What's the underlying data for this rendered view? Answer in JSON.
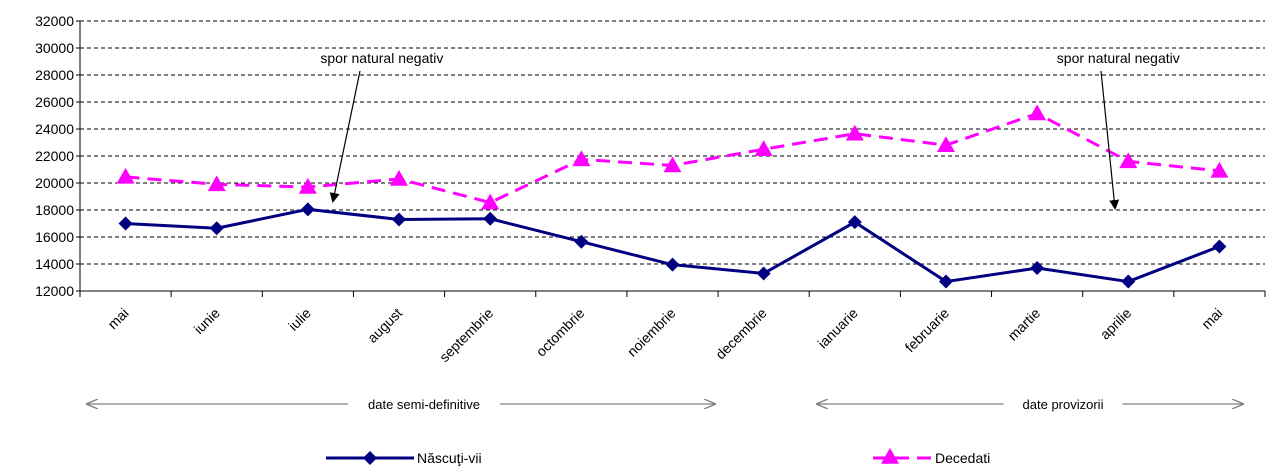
{
  "chart_data": {
    "type": "line",
    "title": "",
    "xlabel": "",
    "ylabel": "",
    "ylim": [
      12000,
      32000
    ],
    "yticks": [
      12000,
      14000,
      16000,
      18000,
      20000,
      22000,
      24000,
      26000,
      28000,
      30000,
      32000
    ],
    "grid": "horizontal dashed",
    "categories": [
      "mai",
      "iunie",
      "iulie",
      "august",
      "septembrie",
      "octombrie",
      "noiembrie",
      "decembrie",
      "ianuarie",
      "februarie",
      "martie",
      "aprilie",
      "mai"
    ],
    "series": [
      {
        "name": "Născuţi-vii",
        "color": "#000080",
        "marker": "diamond",
        "line": "solid",
        "values": [
          17000,
          16650,
          18050,
          17300,
          17350,
          15650,
          13950,
          13300,
          17100,
          12700,
          13700,
          12700,
          15300
        ]
      },
      {
        "name": "Decedati",
        "color": "#FF00FF",
        "marker": "triangle",
        "line": "dashed",
        "values": [
          20450,
          19900,
          19700,
          20300,
          18550,
          21750,
          21300,
          22500,
          23650,
          22800,
          25150,
          21600,
          20900
        ]
      }
    ],
    "annotations": [
      {
        "text": "spor natural negativ",
        "near_category": "iulie"
      },
      {
        "text": "spor natural negativ",
        "near_category": "aprilie"
      }
    ],
    "periods": [
      {
        "text": "date semi-definitive",
        "from": "mai",
        "to": "decembrie"
      },
      {
        "text": "date provizorii",
        "from": "ianuarie",
        "to": "mai"
      }
    ],
    "legend_position": "bottom"
  }
}
